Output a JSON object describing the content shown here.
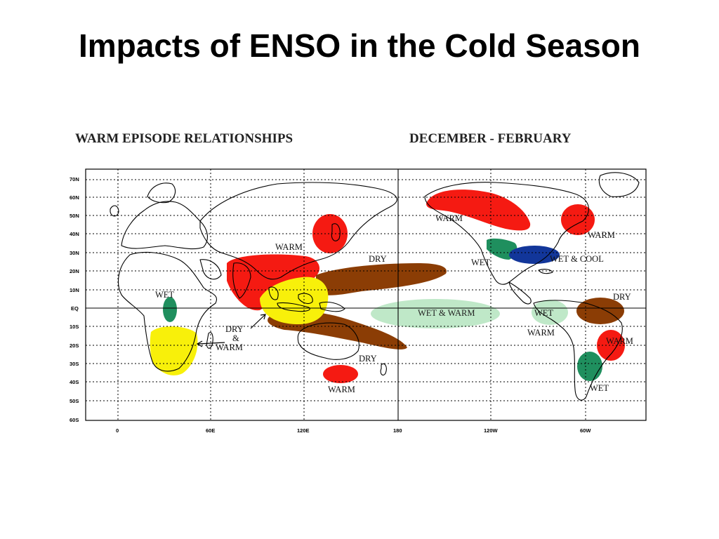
{
  "slide": {
    "title": "Impacts of ENSO in the Cold Season"
  },
  "map": {
    "heading_left": "WARM EPISODE RELATIONSHIPS",
    "heading_right": "DECEMBER - FEBRUARY",
    "lat_labels": [
      "70N",
      "60N",
      "50N",
      "40N",
      "30N",
      "20N",
      "10N",
      "EQ",
      "10S",
      "20S",
      "30S",
      "40S",
      "50S",
      "60S"
    ],
    "lon_labels": [
      "0",
      "60E",
      "120E",
      "180",
      "120W",
      "60W"
    ],
    "colors": {
      "warm": "#f51a12",
      "dry": "#8b3d05",
      "dry_warm": "#f8f00a",
      "wet": "#1f8f5e",
      "wet_warm": "#bfe8c8",
      "wet_cool": "#12369a"
    },
    "labels": {
      "warm_alaska": "WARM",
      "warm_japan": "WARM",
      "warm_canada_east": "WARM",
      "wet_cool_us": "WET & COOL",
      "wet_mexico": "WET",
      "dry_pacific_north": "DRY",
      "dry_pacific_south": "DRY",
      "wet_warm_central": "WET & WARM",
      "wet_east": "WET",
      "warm_east": "WARM",
      "dry_brazil": "DRY",
      "warm_brazil": "WARM",
      "wet_argentina": "WET",
      "warm_australia": "WARM",
      "wet_africa": "WET",
      "dry_warm_africa_1": "DRY",
      "dry_warm_africa_2": "&",
      "dry_warm_africa_3": "WARM"
    }
  }
}
